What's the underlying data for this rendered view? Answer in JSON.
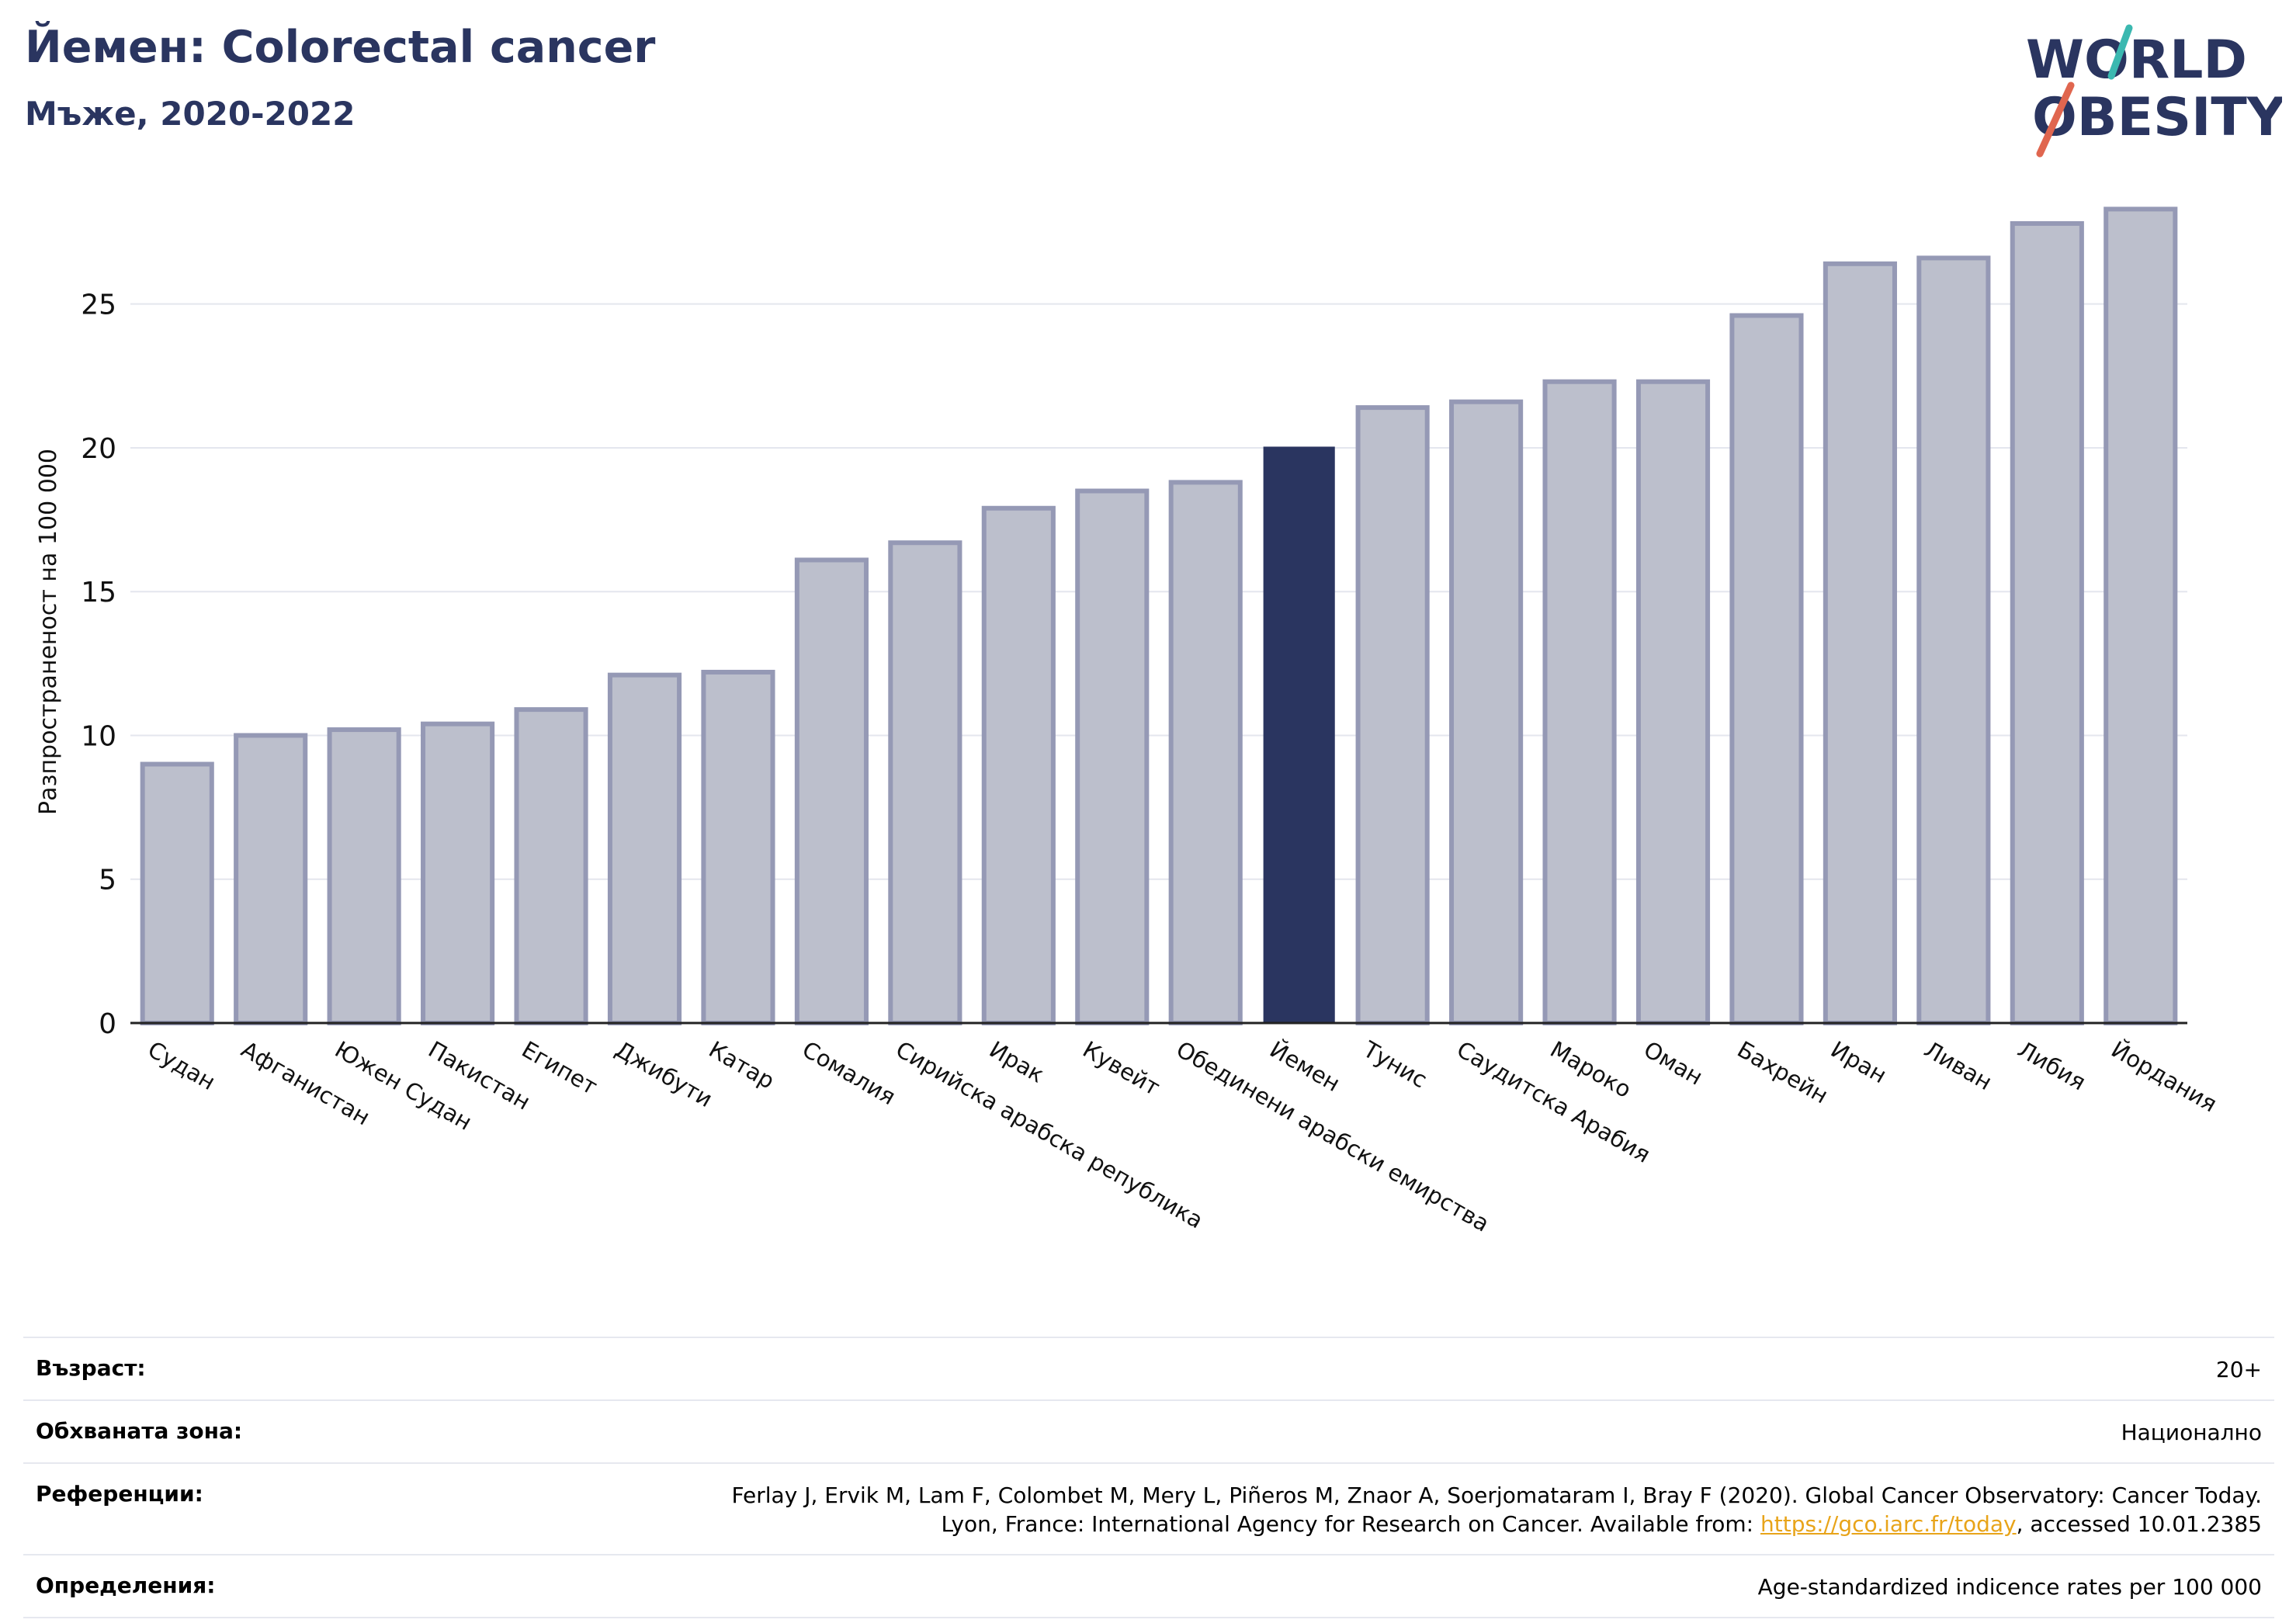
{
  "header": {
    "title": "Йемен: Colorectal cancer",
    "subtitle": "Мъже, 2020-2022"
  },
  "logo": {
    "line1": "WORLD",
    "line2": "OBESITY"
  },
  "colors": {
    "bar": "#bcbfcc",
    "bar_border": "#9599b5",
    "highlight": "#2a3560",
    "grid": "#e4e6ee",
    "title": "#2a3560",
    "link": "#e8a41a"
  },
  "chart_data": {
    "type": "bar",
    "ylabel": "Разпространеност  на 100 000",
    "xlabel": "",
    "ylim": [
      0,
      28.5
    ],
    "yticks": [
      0,
      5,
      10,
      15,
      20,
      25
    ],
    "grid": true,
    "highlight": "Йемен",
    "categories": [
      "Судан",
      "Афганистан",
      "Южен Судан",
      "Пакистан",
      "Египет",
      "Джибути",
      "Катар",
      "Сомалия",
      "Сирийска арабска република",
      "Ирак",
      "Кувейт",
      "Обединени арабски емирства",
      "Йемен",
      "Тунис",
      "Саудитска Арабия",
      "Мароко",
      "Оман",
      "Бахрейн",
      "Иран",
      "Ливан",
      "Либия",
      "Йордания"
    ],
    "values": [
      9.0,
      10.0,
      10.2,
      10.4,
      10.9,
      12.1,
      12.2,
      16.1,
      16.7,
      17.9,
      18.5,
      18.8,
      20.0,
      21.4,
      21.6,
      22.3,
      22.3,
      24.6,
      26.4,
      26.6,
      27.8,
      28.3
    ]
  },
  "info": {
    "age_label": "Възраст:",
    "age_value": "20+",
    "coverage_label": "Обхваната зона:",
    "coverage_value": "Национално",
    "refs_label": "Референции:",
    "refs_line1": "Ferlay J, Ervik M, Lam F, Colombet M, Mery L, Piñeros M, Znaor A, Soerjomataram I, Bray F (2020). Global Cancer Observatory: Cancer Today.",
    "refs_line2_pre": "Lyon, France: International Agency for Research on Cancer. Available from: ",
    "refs_link": "https://gco.iarc.fr/today",
    "refs_line2_post": ", accessed 10.01.2385",
    "defs_label": "Определения:",
    "defs_value": "Age-standardized indicence rates per 100 000"
  }
}
